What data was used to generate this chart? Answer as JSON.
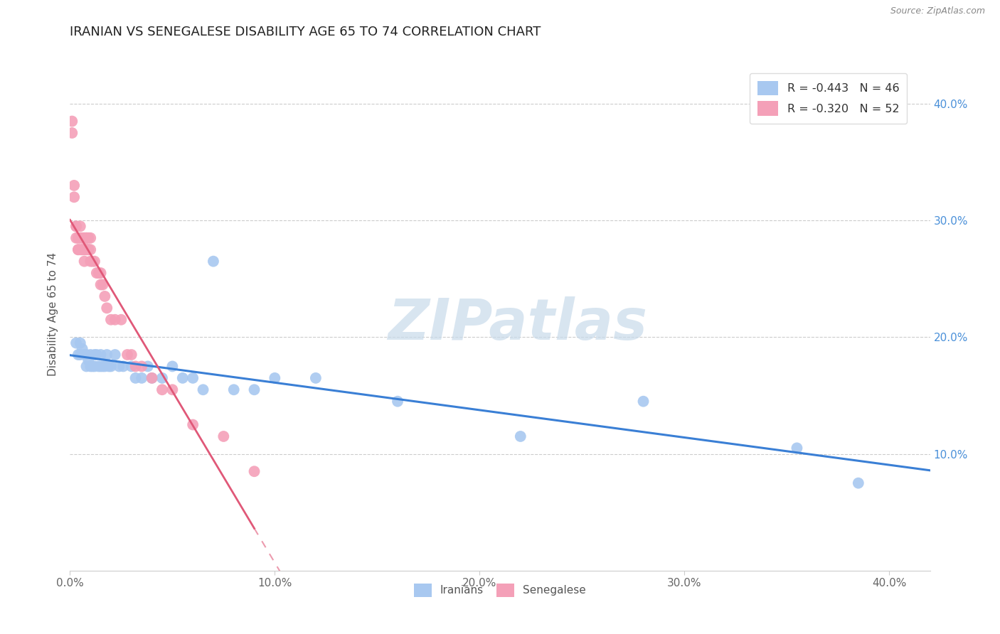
{
  "title": "IRANIAN VS SENEGALESE DISABILITY AGE 65 TO 74 CORRELATION CHART",
  "source": "Source: ZipAtlas.com",
  "ylabel": "Disability Age 65 to 74",
  "xlim": [
    0.0,
    0.42
  ],
  "ylim": [
    0.0,
    0.44
  ],
  "xticks": [
    0.0,
    0.1,
    0.2,
    0.3,
    0.4
  ],
  "yticks": [
    0.1,
    0.2,
    0.3,
    0.4
  ],
  "xtick_labels": [
    "0.0%",
    "10.0%",
    "20.0%",
    "30.0%",
    "40.0%"
  ],
  "ytick_labels": [
    "10.0%",
    "20.0%",
    "30.0%",
    "40.0%"
  ],
  "iranian_R": -0.443,
  "iranian_N": 46,
  "senegalese_R": -0.32,
  "senegalese_N": 52,
  "iranian_color": "#a8c8f0",
  "senegalese_color": "#f4a0b8",
  "iranian_line_color": "#3a7fd5",
  "senegalese_line_color": "#e05878",
  "watermark_color": "#c8daea",
  "iranians_x": [
    0.003,
    0.004,
    0.005,
    0.005,
    0.006,
    0.007,
    0.008,
    0.008,
    0.009,
    0.01,
    0.01,
    0.011,
    0.012,
    0.012,
    0.013,
    0.014,
    0.015,
    0.015,
    0.016,
    0.017,
    0.018,
    0.019,
    0.02,
    0.022,
    0.024,
    0.026,
    0.03,
    0.032,
    0.035,
    0.038,
    0.04,
    0.045,
    0.05,
    0.055,
    0.06,
    0.065,
    0.07,
    0.08,
    0.09,
    0.1,
    0.12,
    0.16,
    0.22,
    0.28,
    0.355,
    0.385
  ],
  "iranians_y": [
    0.195,
    0.185,
    0.195,
    0.185,
    0.19,
    0.185,
    0.185,
    0.175,
    0.18,
    0.175,
    0.185,
    0.175,
    0.175,
    0.185,
    0.185,
    0.175,
    0.175,
    0.185,
    0.175,
    0.175,
    0.185,
    0.175,
    0.175,
    0.185,
    0.175,
    0.175,
    0.175,
    0.165,
    0.165,
    0.175,
    0.165,
    0.165,
    0.175,
    0.165,
    0.165,
    0.155,
    0.265,
    0.155,
    0.155,
    0.165,
    0.165,
    0.145,
    0.115,
    0.145,
    0.105,
    0.075
  ],
  "senegalese_x": [
    0.001,
    0.001,
    0.002,
    0.002,
    0.003,
    0.003,
    0.003,
    0.004,
    0.004,
    0.004,
    0.005,
    0.005,
    0.005,
    0.006,
    0.006,
    0.006,
    0.007,
    0.007,
    0.007,
    0.007,
    0.008,
    0.008,
    0.008,
    0.008,
    0.009,
    0.009,
    0.009,
    0.01,
    0.01,
    0.01,
    0.011,
    0.012,
    0.013,
    0.014,
    0.015,
    0.015,
    0.016,
    0.017,
    0.018,
    0.02,
    0.022,
    0.025,
    0.028,
    0.03,
    0.032,
    0.035,
    0.04,
    0.045,
    0.05,
    0.06,
    0.075,
    0.09
  ],
  "senegalese_y": [
    0.385,
    0.375,
    0.32,
    0.33,
    0.295,
    0.285,
    0.295,
    0.275,
    0.285,
    0.275,
    0.275,
    0.285,
    0.295,
    0.275,
    0.285,
    0.275,
    0.275,
    0.285,
    0.275,
    0.265,
    0.285,
    0.275,
    0.275,
    0.285,
    0.275,
    0.285,
    0.275,
    0.275,
    0.285,
    0.265,
    0.265,
    0.265,
    0.255,
    0.255,
    0.255,
    0.245,
    0.245,
    0.235,
    0.225,
    0.215,
    0.215,
    0.215,
    0.185,
    0.185,
    0.175,
    0.175,
    0.165,
    0.155,
    0.155,
    0.125,
    0.115,
    0.085
  ]
}
